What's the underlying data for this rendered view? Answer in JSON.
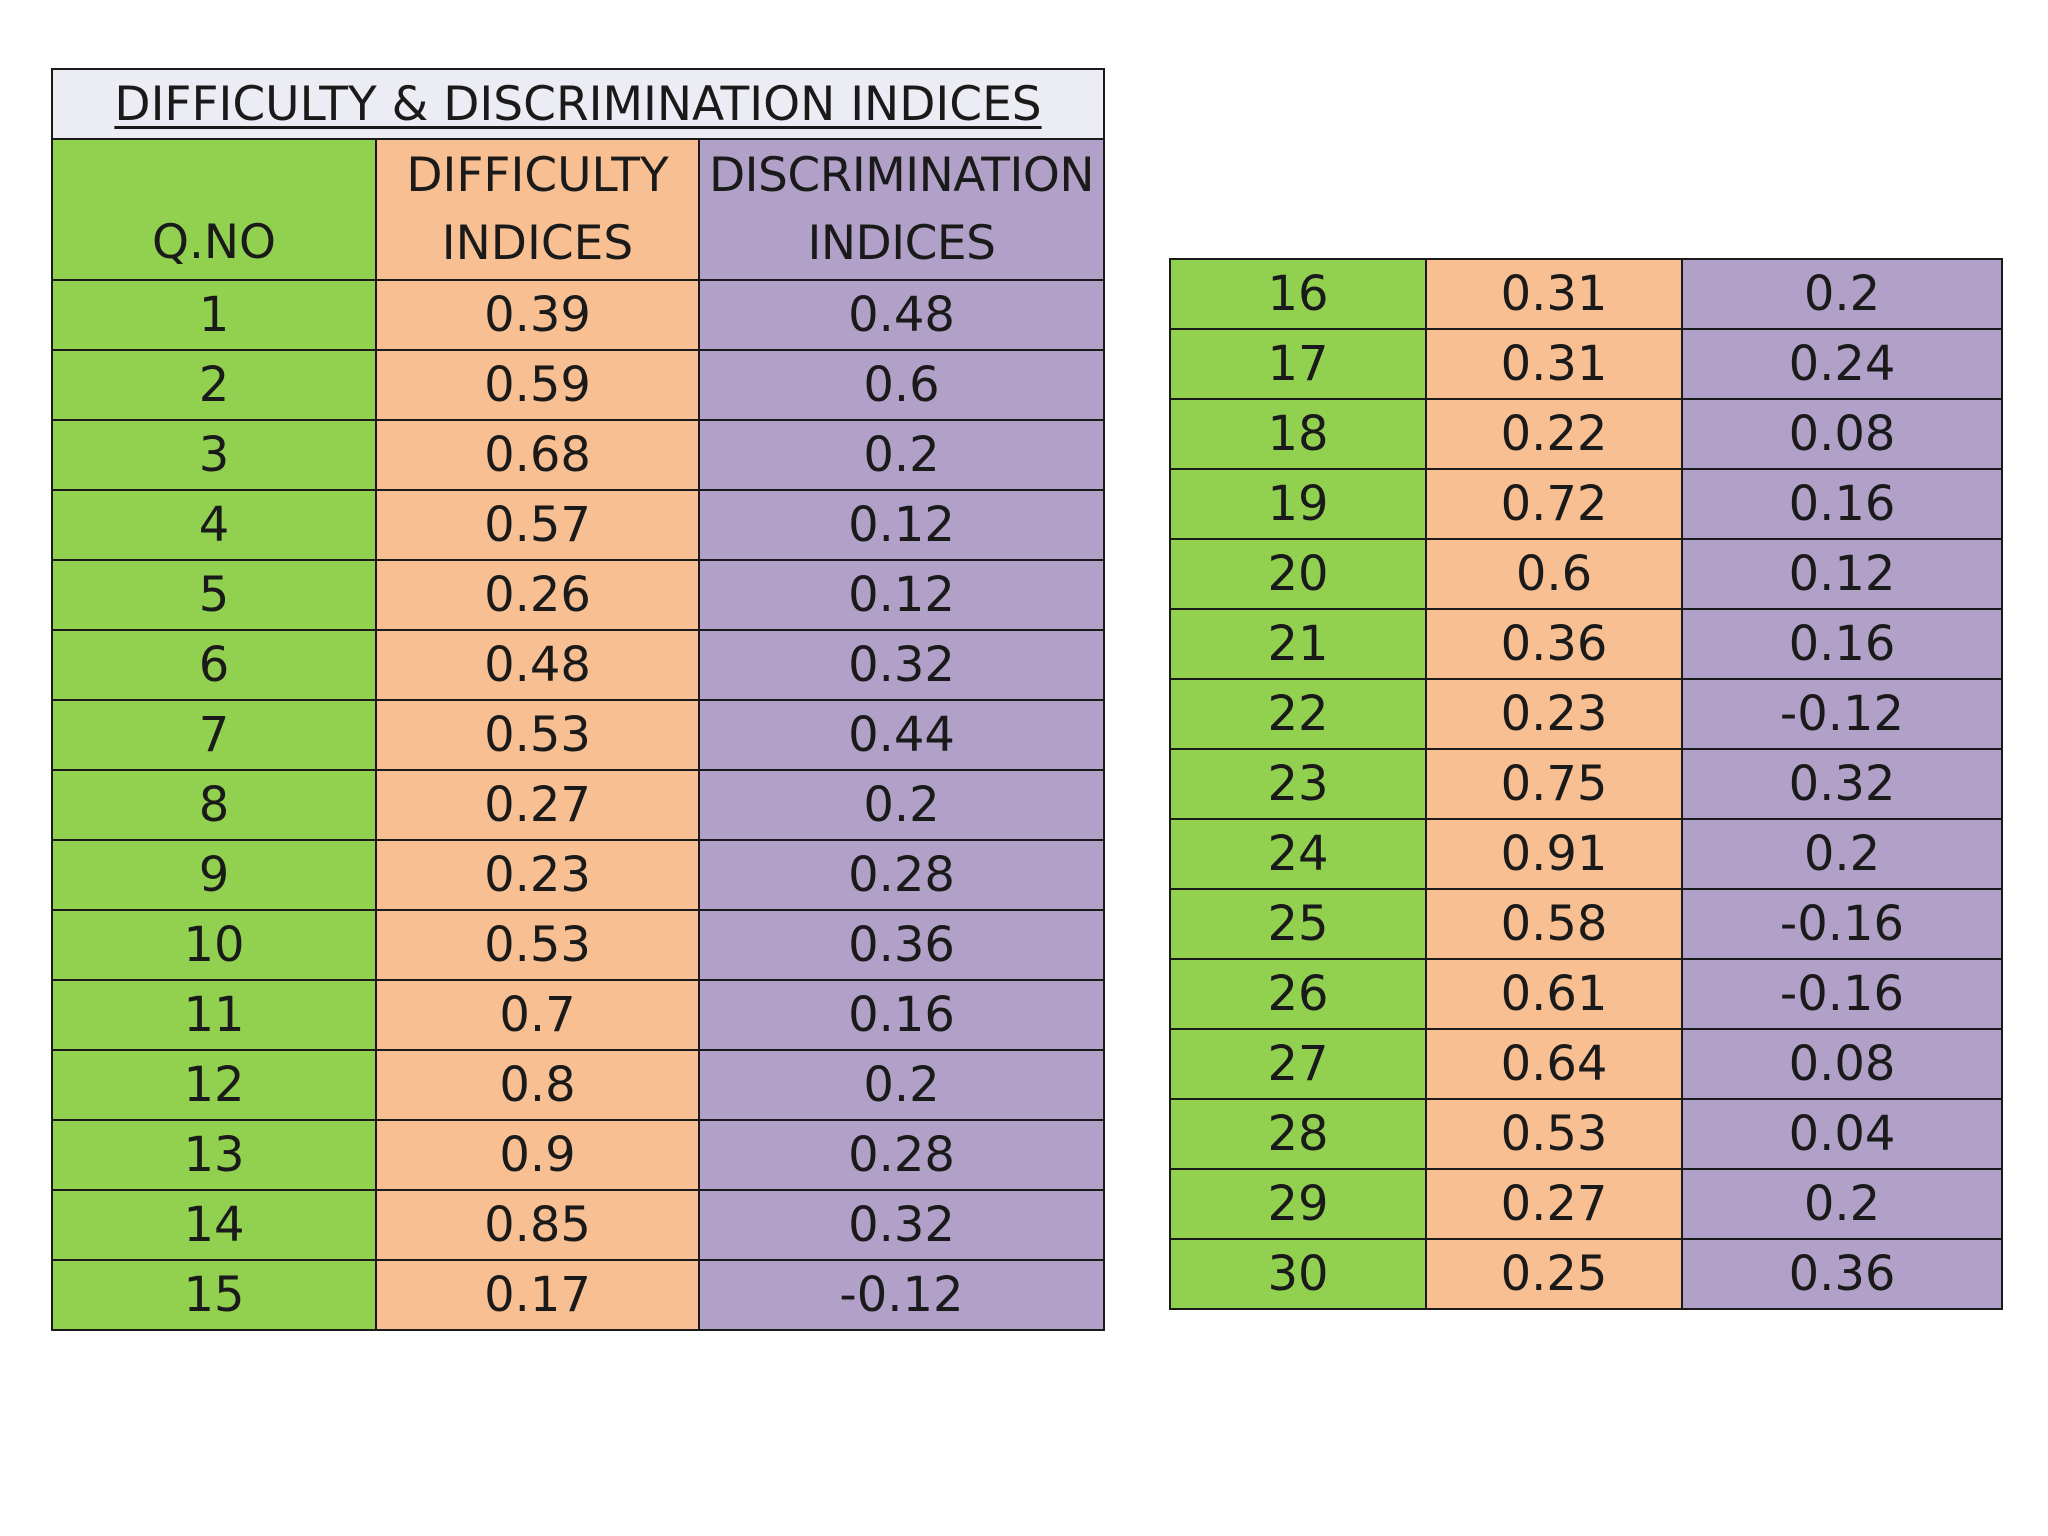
{
  "title": "DIFFICULTY & DISCRIMINATION INDICES",
  "headers": {
    "qno": "Q.NO",
    "difficulty_line1": "DIFFICULTY",
    "difficulty_line2": "INDICES",
    "discrimination_line1": "DISCRIMINATION",
    "discrimination_line2": "INDICES"
  },
  "colors": {
    "qno_column": "#92d050",
    "difficulty_column": "#f8c092",
    "discrimination_column": "#b1a0c7",
    "title_band": "#ececf4"
  },
  "rows_left": [
    {
      "q": "1",
      "difficulty": "0.39",
      "discrimination": "0.48"
    },
    {
      "q": "2",
      "difficulty": "0.59",
      "discrimination": "0.6"
    },
    {
      "q": "3",
      "difficulty": "0.68",
      "discrimination": "0.2"
    },
    {
      "q": "4",
      "difficulty": "0.57",
      "discrimination": "0.12"
    },
    {
      "q": "5",
      "difficulty": "0.26",
      "discrimination": "0.12"
    },
    {
      "q": "6",
      "difficulty": "0.48",
      "discrimination": "0.32"
    },
    {
      "q": "7",
      "difficulty": "0.53",
      "discrimination": "0.44"
    },
    {
      "q": "8",
      "difficulty": "0.27",
      "discrimination": "0.2"
    },
    {
      "q": "9",
      "difficulty": "0.23",
      "discrimination": "0.28"
    },
    {
      "q": "10",
      "difficulty": "0.53",
      "discrimination": "0.36"
    },
    {
      "q": "11",
      "difficulty": "0.7",
      "discrimination": "0.16"
    },
    {
      "q": "12",
      "difficulty": "0.8",
      "discrimination": "0.2"
    },
    {
      "q": "13",
      "difficulty": "0.9",
      "discrimination": "0.28"
    },
    {
      "q": "14",
      "difficulty": "0.85",
      "discrimination": "0.32"
    },
    {
      "q": "15",
      "difficulty": "0.17",
      "discrimination": "-0.12"
    }
  ],
  "rows_right": [
    {
      "q": "16",
      "difficulty": "0.31",
      "discrimination": "0.2"
    },
    {
      "q": "17",
      "difficulty": "0.31",
      "discrimination": "0.24"
    },
    {
      "q": "18",
      "difficulty": "0.22",
      "discrimination": "0.08"
    },
    {
      "q": "19",
      "difficulty": "0.72",
      "discrimination": "0.16"
    },
    {
      "q": "20",
      "difficulty": "0.6",
      "discrimination": "0.12"
    },
    {
      "q": "21",
      "difficulty": "0.36",
      "discrimination": "0.16"
    },
    {
      "q": "22",
      "difficulty": "0.23",
      "discrimination": "-0.12"
    },
    {
      "q": "23",
      "difficulty": "0.75",
      "discrimination": "0.32"
    },
    {
      "q": "24",
      "difficulty": "0.91",
      "discrimination": "0.2"
    },
    {
      "q": "25",
      "difficulty": "0.58",
      "discrimination": "-0.16"
    },
    {
      "q": "26",
      "difficulty": "0.61",
      "discrimination": "-0.16"
    },
    {
      "q": "27",
      "difficulty": "0.64",
      "discrimination": "0.08"
    },
    {
      "q": "28",
      "difficulty": "0.53",
      "discrimination": "0.04"
    },
    {
      "q": "29",
      "difficulty": "0.27",
      "discrimination": "0.2"
    },
    {
      "q": "30",
      "difficulty": "0.25",
      "discrimination": "0.36"
    }
  ]
}
